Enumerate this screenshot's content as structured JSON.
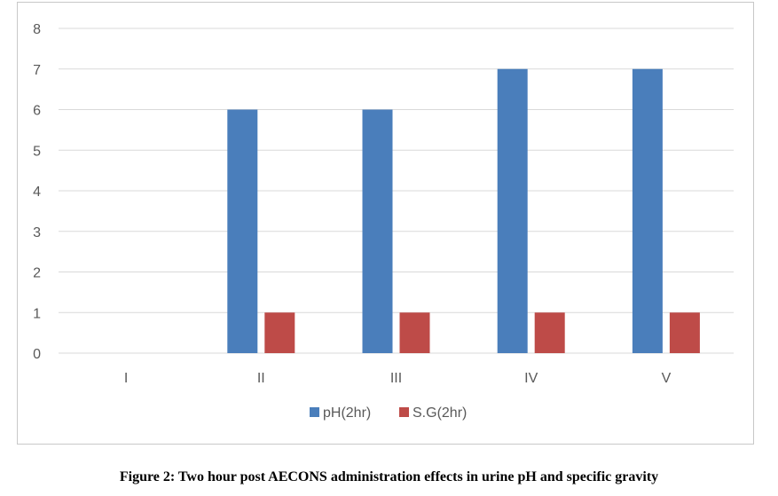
{
  "chart_data": {
    "type": "bar",
    "categories": [
      "I",
      "II",
      "III",
      "IV",
      "V"
    ],
    "series": [
      {
        "name": "pH(2hr)",
        "values": [
          0,
          6,
          6,
          7,
          7
        ],
        "color": "#4a7ebb"
      },
      {
        "name": "S.G(2hr)",
        "values": [
          0,
          1,
          1,
          1,
          1
        ],
        "color": "#be4b48"
      }
    ],
    "yticks": [
      "0",
      "1",
      "2",
      "3",
      "4",
      "5",
      "6",
      "7",
      "8"
    ],
    "ylim": [
      0,
      8
    ],
    "grid": true,
    "legend_position": "bottom",
    "title": "",
    "xlabel": "",
    "ylabel": ""
  },
  "caption": "Figure 2: Two hour post AECONS administration effects in urine pH and specific gravity"
}
